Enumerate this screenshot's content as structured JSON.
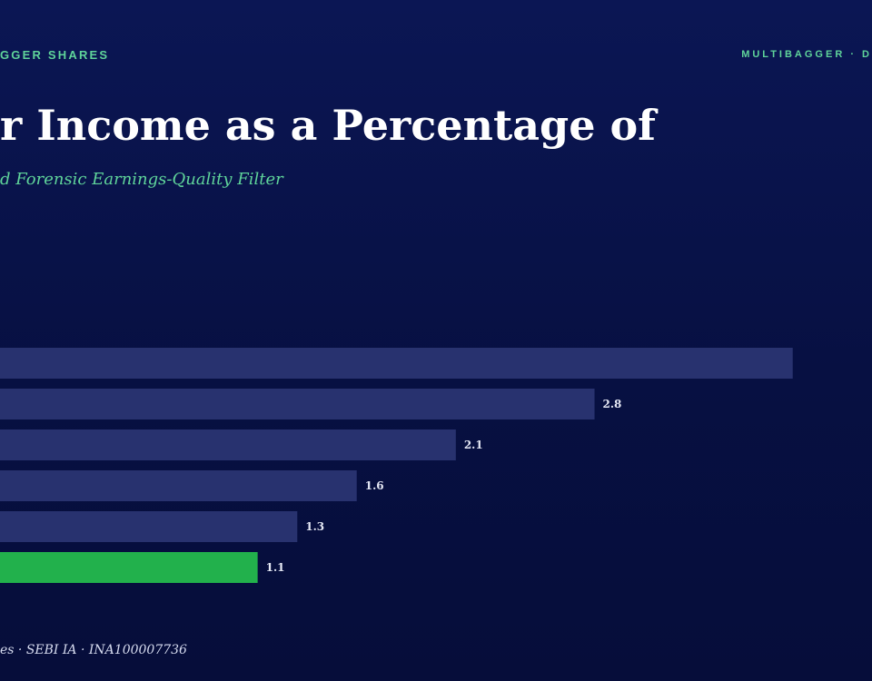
{
  "header": {
    "top_left": "GGER SHARES",
    "top_right": "MULTIBAGGER · D",
    "title": "r Income as a Percentage of",
    "subtitle": "d Forensic Earnings-Quality Filter"
  },
  "footer": {
    "text": "es · SEBI IA · INA100007736"
  },
  "colors": {
    "accent": "#5fd49a",
    "bar": "#28326f",
    "highlight_bar": "#22b14c",
    "background": "#071042"
  },
  "chart_data": {
    "type": "bar",
    "orientation": "horizontal",
    "title": "r Income as a Percentage of",
    "subtitle": "d Forensic Earnings-Quality Filter",
    "categories": [
      "",
      "",
      "",
      "",
      "",
      ""
    ],
    "values": [
      3.8,
      2.8,
      2.1,
      1.6,
      1.3,
      1.1
    ],
    "value_labels": [
      "",
      "2.8",
      "2.1",
      "1.6",
      "1.3",
      "1.1"
    ],
    "highlight_index": 5,
    "xlim": [
      -0.2,
      4.2
    ],
    "grid": false,
    "legend": "none"
  }
}
